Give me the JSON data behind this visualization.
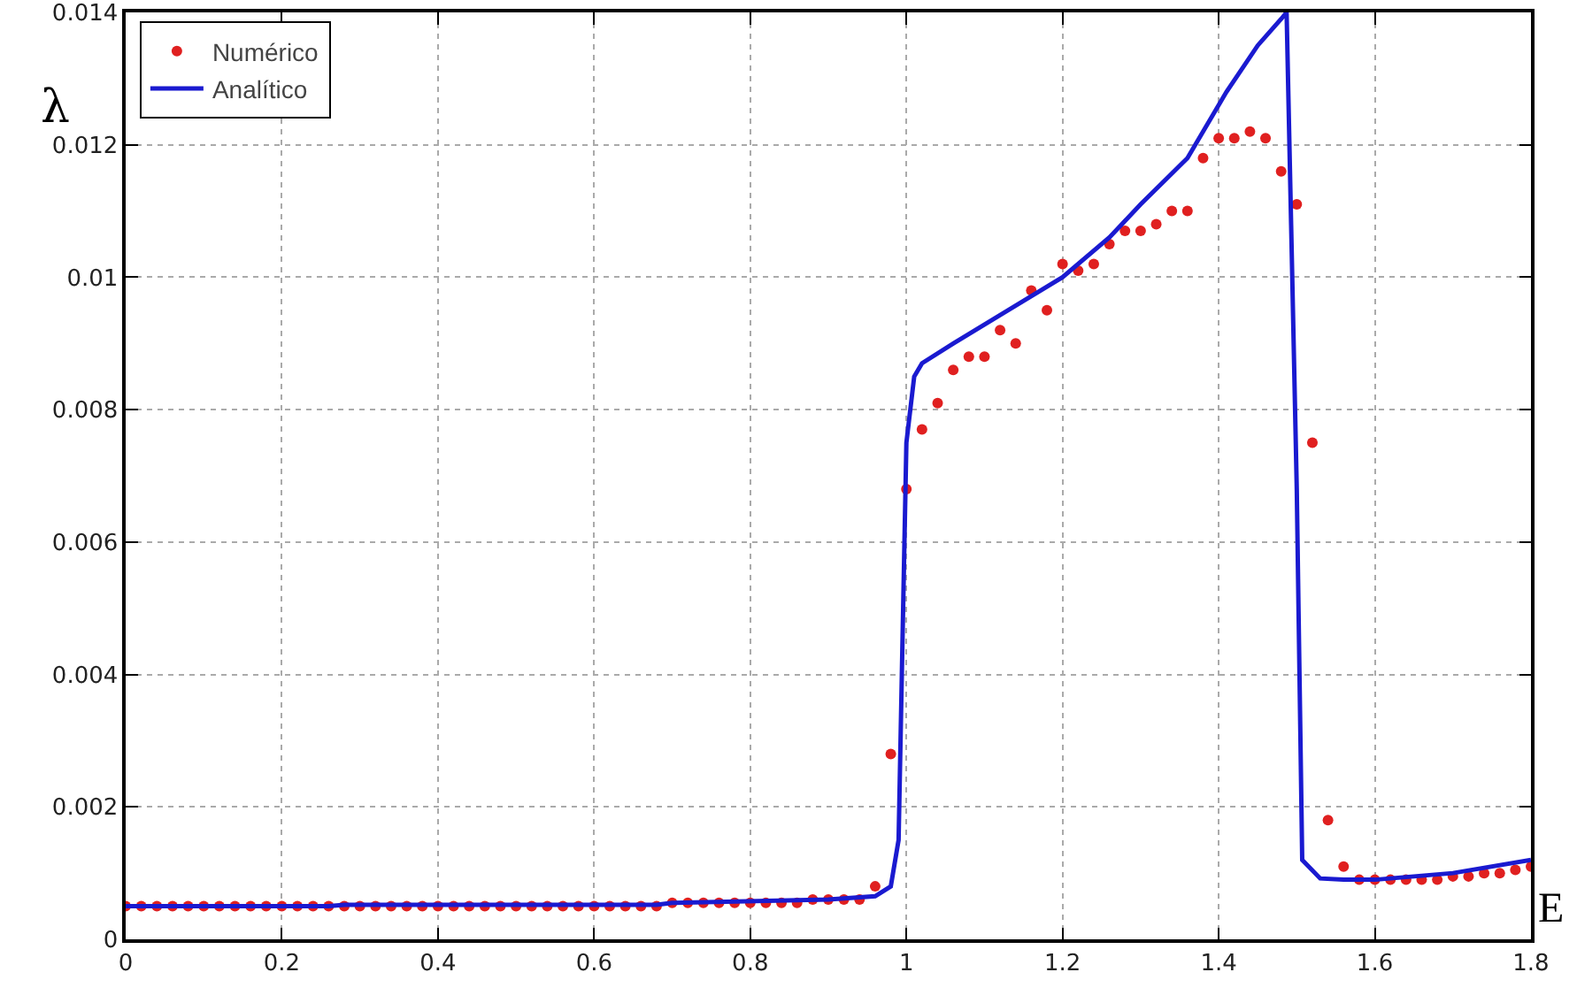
{
  "chart_data": {
    "type": "scatter",
    "xlabel": "E",
    "ylabel": "λ",
    "xlim": [
      0,
      1.8
    ],
    "ylim": [
      0,
      0.014
    ],
    "xticks": [
      0,
      0.2,
      0.4,
      0.6,
      0.8,
      1,
      1.2,
      1.4,
      1.6,
      1.8
    ],
    "yticks": [
      0,
      0.002,
      0.004,
      0.006,
      0.008,
      0.01,
      0.012,
      0.014
    ],
    "grid": true,
    "legend": "top left",
    "series": [
      {
        "name": "Numérico",
        "type": "scatter",
        "marker": "circle",
        "color": "#e02020",
        "x": [
          0,
          0.02,
          0.04,
          0.06,
          0.08,
          0.1,
          0.12,
          0.14,
          0.16,
          0.18,
          0.2,
          0.22,
          0.24,
          0.26,
          0.28,
          0.3,
          0.32,
          0.34,
          0.36,
          0.38,
          0.4,
          0.42,
          0.44,
          0.46,
          0.48,
          0.5,
          0.52,
          0.54,
          0.56,
          0.58,
          0.6,
          0.62,
          0.64,
          0.66,
          0.68,
          0.7,
          0.72,
          0.74,
          0.76,
          0.78,
          0.8,
          0.82,
          0.84,
          0.86,
          0.88,
          0.9,
          0.92,
          0.94,
          0.96,
          0.98,
          1,
          1.02,
          1.04,
          1.06,
          1.08,
          1.1,
          1.12,
          1.14,
          1.16,
          1.18,
          1.2,
          1.22,
          1.24,
          1.26,
          1.28,
          1.3,
          1.32,
          1.34,
          1.36,
          1.38,
          1.4,
          1.42,
          1.44,
          1.46,
          1.48,
          1.5,
          1.52,
          1.54,
          1.56,
          1.58,
          1.6,
          1.62,
          1.64,
          1.66,
          1.68,
          1.7,
          1.72,
          1.74,
          1.76,
          1.78,
          1.8
        ],
        "values": [
          0.0005,
          0.0005,
          0.0005,
          0.0005,
          0.0005,
          0.0005,
          0.0005,
          0.0005,
          0.0005,
          0.0005,
          0.0005,
          0.0005,
          0.0005,
          0.0005,
          0.0005,
          0.0005,
          0.0005,
          0.0005,
          0.0005,
          0.0005,
          0.0005,
          0.0005,
          0.0005,
          0.0005,
          0.0005,
          0.0005,
          0.0005,
          0.0005,
          0.0005,
          0.0005,
          0.0005,
          0.0005,
          0.0005,
          0.0005,
          0.0005,
          0.00055,
          0.00055,
          0.00055,
          0.00055,
          0.00055,
          0.00055,
          0.00055,
          0.00055,
          0.00055,
          0.0006,
          0.0006,
          0.0006,
          0.0006,
          0.0008,
          0.0028,
          0.0068,
          0.0077,
          0.0081,
          0.0086,
          0.0088,
          0.0088,
          0.0092,
          0.009,
          0.0098,
          0.0095,
          0.0102,
          0.0101,
          0.0102,
          0.0105,
          0.0107,
          0.0107,
          0.0108,
          0.011,
          0.011,
          0.0118,
          0.0121,
          0.0121,
          0.0122,
          0.0121,
          0.0116,
          0.0111,
          0.0075,
          0.0018,
          0.0011,
          0.0009,
          0.0009,
          0.0009,
          0.0009,
          0.0009,
          0.0009,
          0.00095,
          0.00095,
          0.001,
          0.001,
          0.00105,
          0.0011
        ]
      },
      {
        "name": "Analítico",
        "type": "line",
        "color": "#1a1ad0",
        "x": [
          0,
          0.26,
          0.28,
          0.68,
          0.7,
          0.9,
          0.96,
          0.98,
          0.99,
          1,
          1.01,
          1.02,
          1.06,
          1.13,
          1.2,
          1.26,
          1.3,
          1.36,
          1.41,
          1.45,
          1.48,
          1.487,
          1.5,
          1.507,
          1.53,
          1.56,
          1.6,
          1.7,
          1.8
        ],
        "values": [
          0.0005,
          0.0005,
          0.00052,
          0.00052,
          0.00055,
          0.0006,
          0.00065,
          0.0008,
          0.0015,
          0.0075,
          0.0085,
          0.0087,
          0.009,
          0.0095,
          0.01,
          0.0106,
          0.0111,
          0.0118,
          0.0128,
          0.0135,
          0.0139,
          0.014,
          0.0068,
          0.0012,
          0.00092,
          0.0009,
          0.0009,
          0.001,
          0.0012
        ]
      }
    ]
  }
}
